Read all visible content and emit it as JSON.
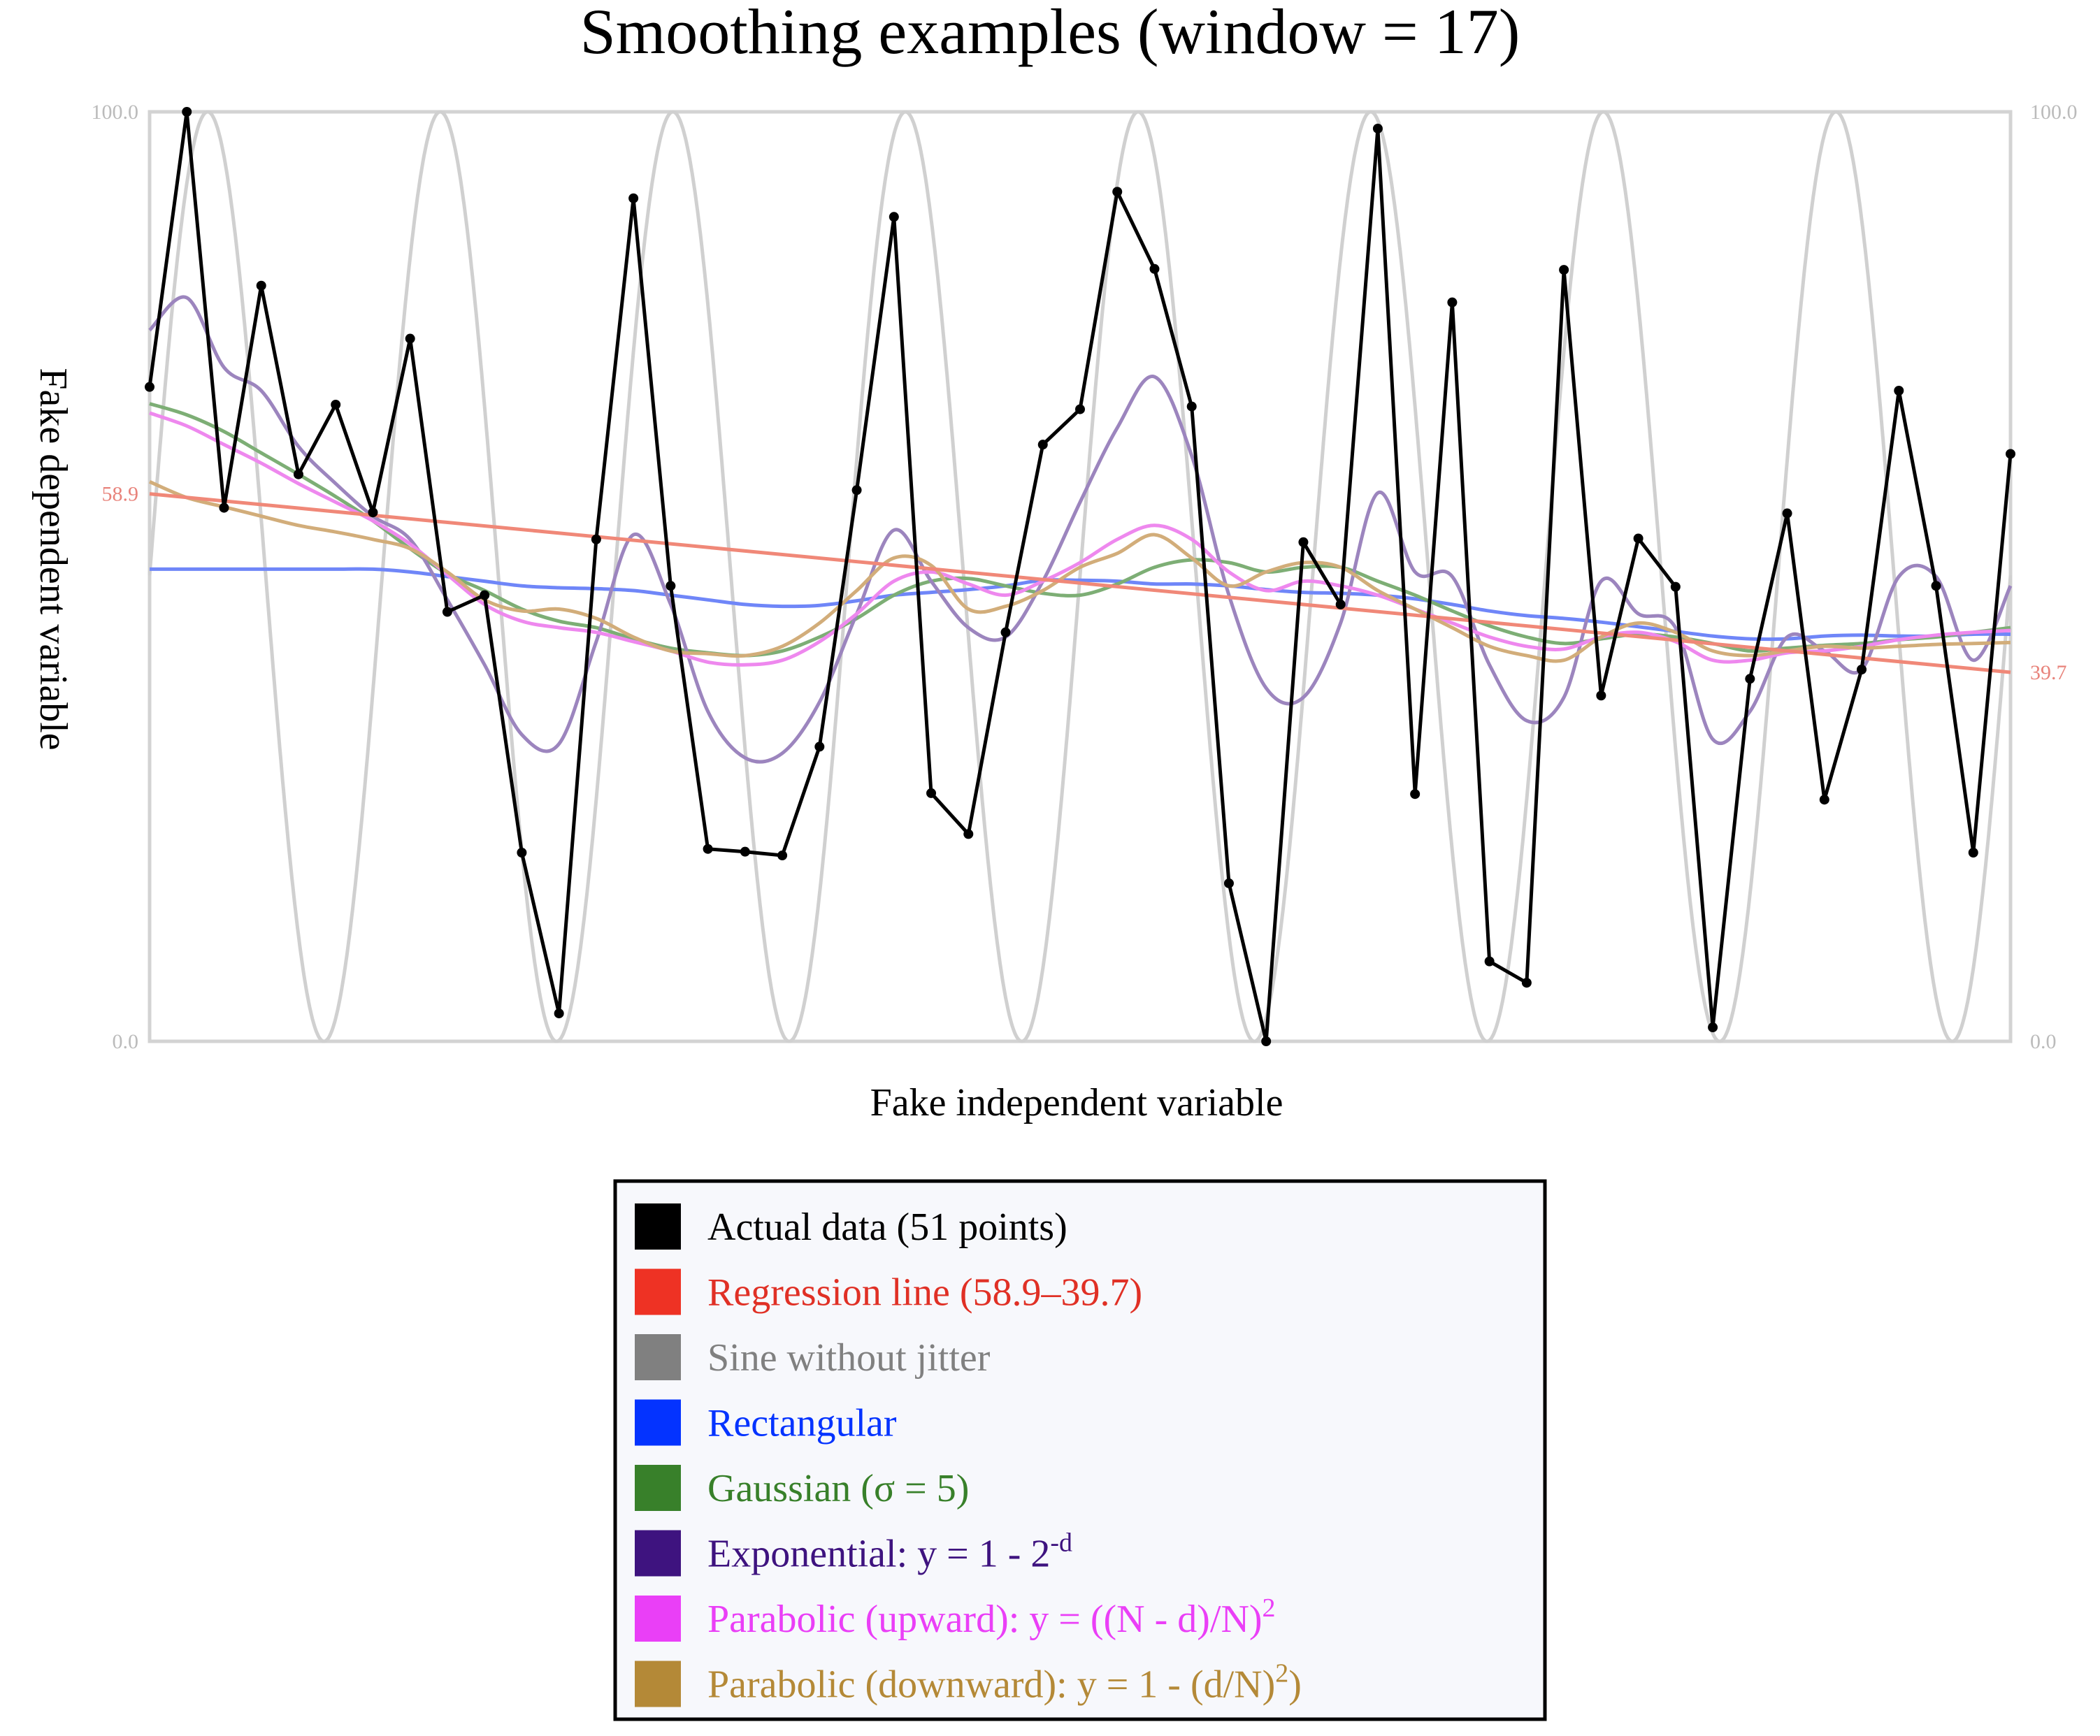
{
  "chart_data": {
    "type": "line",
    "title": "Smoothing examples (window = 17)",
    "xlabel": "Fake independent variable",
    "ylabel": "Fake dependent variable",
    "ylim": [
      0.0,
      100.0
    ],
    "xlim": [
      0,
      50
    ],
    "left_ticks": [
      "100.0",
      "58.9",
      "0.0"
    ],
    "right_ticks": [
      "100.0",
      "39.7",
      "0.0"
    ],
    "grid": false,
    "legend_position": "bottom-center",
    "x": [
      0,
      1,
      2,
      3,
      4,
      5,
      6,
      7,
      8,
      9,
      10,
      11,
      12,
      13,
      14,
      15,
      16,
      17,
      18,
      19,
      20,
      21,
      22,
      23,
      24,
      25,
      26,
      27,
      28,
      29,
      30,
      31,
      32,
      33,
      34,
      35,
      36,
      37,
      38,
      39,
      40,
      41,
      42,
      43,
      44,
      45,
      46,
      47,
      48,
      49,
      50
    ],
    "sine": {
      "amplitude": 50,
      "offset": 50,
      "period": 6.25,
      "phase_x": 1.56
    },
    "series": [
      {
        "name": "Actual data (51 points)",
        "color": "#000000",
        "values": [
          70.4,
          100.0,
          57.4,
          81.3,
          61.0,
          68.5,
          56.9,
          75.6,
          46.2,
          48.0,
          20.3,
          3.0,
          54.0,
          90.7,
          49.0,
          20.7,
          20.4,
          20.0,
          31.7,
          59.3,
          88.7,
          26.7,
          22.3,
          44.0,
          64.2,
          68.0,
          91.4,
          83.1,
          68.3,
          17.0,
          0.0,
          53.7,
          47.0,
          98.2,
          26.6,
          79.5,
          8.6,
          6.3,
          83.0,
          37.2,
          54.1,
          48.9,
          1.5,
          39.0,
          56.8,
          26.0,
          40.0,
          70.0,
          49.0,
          20.3,
          63.2
        ]
      },
      {
        "name": "Regression line (58.9–39.7)",
        "color": "#f08878",
        "start": 58.9,
        "end": 39.7
      },
      {
        "name": "Sine without jitter",
        "color": "#d0d0d0"
      },
      {
        "name": "Rectangular",
        "color": "#6f86f8",
        "values": [
          50.8,
          50.8,
          50.8,
          50.8,
          50.8,
          50.8,
          50.8,
          50.5,
          50.0,
          49.5,
          49.0,
          48.8,
          48.7,
          48.5,
          48.0,
          47.5,
          47.0,
          46.8,
          46.9,
          47.4,
          48.0,
          48.3,
          48.6,
          49.0,
          49.6,
          49.6,
          49.5,
          49.2,
          49.2,
          49.0,
          48.6,
          48.3,
          48.2,
          48.0,
          47.6,
          47.0,
          46.3,
          45.8,
          45.5,
          45.1,
          44.6,
          44.1,
          43.6,
          43.3,
          43.3,
          43.6,
          43.7,
          43.6,
          43.6,
          43.8,
          43.8
        ]
      },
      {
        "name": "Gaussian (σ = 5)",
        "color": "#7dae75",
        "values": [
          68.6,
          67.4,
          65.6,
          63.3,
          61.0,
          58.6,
          56.0,
          53.0,
          50.3,
          48.5,
          46.5,
          45.2,
          44.5,
          43.3,
          42.3,
          41.8,
          41.5,
          42.0,
          43.5,
          45.5,
          48.0,
          49.5,
          49.8,
          49.0,
          48.2,
          48.0,
          49.2,
          51.0,
          51.8,
          51.5,
          50.5,
          51.0,
          51.0,
          49.5,
          48.0,
          46.3,
          44.7,
          43.5,
          42.8,
          43.3,
          43.8,
          43.5,
          42.8,
          42.0,
          42.3,
          42.6,
          42.8,
          43.2,
          43.5,
          44.0,
          44.5
        ]
      },
      {
        "name": "Exponential: y = 1 - 2^-d",
        "color": "#9c85be",
        "values": [
          76.5,
          80.0,
          72.5,
          70.0,
          64.0,
          60.0,
          56.5,
          54.0,
          47.5,
          40.5,
          33.0,
          32.0,
          43.0,
          54.5,
          47.0,
          35.5,
          30.5,
          31.0,
          36.5,
          46.0,
          55.0,
          49.5,
          44.5,
          43.5,
          49.5,
          58.0,
          66.0,
          71.5,
          63.0,
          48.0,
          38.0,
          37.0,
          45.0,
          59.0,
          50.5,
          50.0,
          40.5,
          34.5,
          37.0,
          49.5,
          46.0,
          44.5,
          32.5,
          35.5,
          43.5,
          42.0,
          40.0,
          50.0,
          50.0,
          41.0,
          49.0
        ]
      },
      {
        "name": "Parabolic (upward): y = ((N - d)/N)^2",
        "color": "#ee88ee",
        "values": [
          67.6,
          66.2,
          64.2,
          62.2,
          60.0,
          58.0,
          56.0,
          53.5,
          50.2,
          47.0,
          45.2,
          44.5,
          44.0,
          43.0,
          42.0,
          40.8,
          40.5,
          41.0,
          43.0,
          46.0,
          49.5,
          50.5,
          49.2,
          48.0,
          49.5,
          51.5,
          54.0,
          55.5,
          54.0,
          50.5,
          48.5,
          49.5,
          49.0,
          48.0,
          46.5,
          45.0,
          43.5,
          42.5,
          42.2,
          43.5,
          44.0,
          43.0,
          41.0,
          41.0,
          41.8,
          42.0,
          42.5,
          43.2,
          43.7,
          44.0,
          44.2
        ]
      },
      {
        "name": "Parabolic (downward): y = 1 - (d/N)^2)",
        "color": "#d2ad7a",
        "values": [
          60.2,
          58.5,
          57.5,
          56.5,
          55.5,
          54.8,
          54.0,
          53.0,
          50.5,
          47.5,
          46.3,
          46.5,
          45.5,
          43.5,
          42.0,
          41.7,
          41.5,
          42.5,
          45.0,
          48.5,
          52.0,
          51.2,
          46.5,
          46.8,
          48.5,
          51.0,
          52.5,
          54.5,
          52.0,
          49.0,
          50.5,
          51.5,
          51.0,
          48.5,
          46.5,
          44.5,
          42.5,
          41.5,
          41.0,
          43.5,
          45.0,
          44.0,
          42.0,
          41.5,
          42.0,
          42.5,
          42.3,
          42.5,
          42.7,
          42.8,
          42.9
        ]
      }
    ]
  },
  "legend": {
    "items": [
      {
        "label": "Actual data (51 points)",
        "sup": "",
        "tail": "",
        "swatch": "#000000",
        "text_color": "#000000"
      },
      {
        "label": "Regression line (58.9–39.7)",
        "sup": "",
        "tail": "",
        "swatch": "#ee3224",
        "text_color": "#e03025"
      },
      {
        "label": "Sine without jitter",
        "sup": "",
        "tail": "",
        "swatch": "#808080",
        "text_color": "#808080"
      },
      {
        "label": "Rectangular",
        "sup": "",
        "tail": "",
        "swatch": "#0433ff",
        "text_color": "#0433ff"
      },
      {
        "label": "Gaussian (σ = 5)",
        "sup": "",
        "tail": "",
        "swatch": "#38802a",
        "text_color": "#38802a"
      },
      {
        "label": "Exponential: y = 1 - 2",
        "sup": "-d",
        "tail": "",
        "swatch": "#3e137f",
        "text_color": "#3e137f"
      },
      {
        "label": "Parabolic (upward): y = ((N - d)/N)",
        "sup": "2",
        "tail": "",
        "swatch": "#ea3ff7",
        "text_color": "#ea3ff7"
      },
      {
        "label": "Parabolic (downward): y = 1 - (d/N)",
        "sup": "2",
        "tail": ")",
        "swatch": "#b48937",
        "text_color": "#b48937"
      }
    ]
  }
}
